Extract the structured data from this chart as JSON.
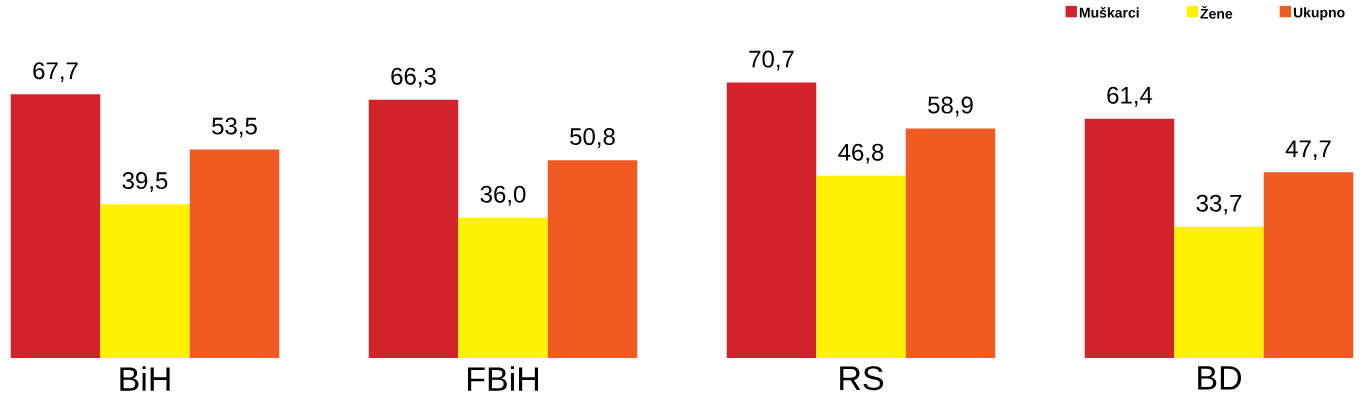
{
  "chart_data": {
    "type": "bar",
    "categories": [
      "BiH",
      "FBiH",
      "RS",
      "BD"
    ],
    "series": [
      {
        "name": "Muškarci",
        "color": "#d2232a",
        "values": [
          67.7,
          66.3,
          70.7,
          61.4
        ],
        "value_labels": [
          "67,7",
          "66,3",
          "70,7",
          "61,4"
        ]
      },
      {
        "name": "Žene",
        "color": "#fff200",
        "values": [
          39.5,
          36.0,
          46.8,
          33.7
        ],
        "value_labels": [
          "39,5",
          "36,0",
          "46,8",
          "33,7"
        ]
      },
      {
        "name": "Ukupno",
        "color": "#f15a22",
        "values": [
          53.5,
          50.8,
          58.9,
          47.7
        ],
        "value_labels": [
          "53,5",
          "50,8",
          "58,9",
          "47,7"
        ]
      }
    ],
    "legend": "top right"
  }
}
